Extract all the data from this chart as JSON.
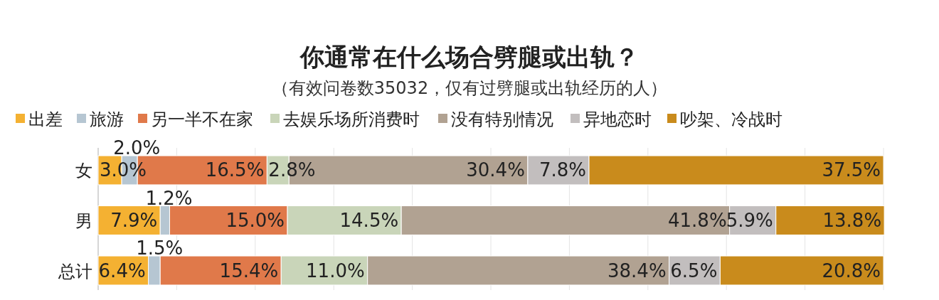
{
  "chart_data": {
    "type": "bar",
    "orientation": "horizontal",
    "stacked": true,
    "title": "你通常在什么场合劈腿或出轨？",
    "subtitle": "（有效问卷数35032，仅有过劈腿或出轨经历的人）",
    "categories": [
      "女",
      "男",
      "总计"
    ],
    "series": [
      {
        "name": "出差",
        "color": "#f4b132",
        "values": [
          3.0,
          7.9,
          6.4
        ],
        "value_labels": [
          "3.0%",
          "7.9%",
          "6.4%"
        ]
      },
      {
        "name": "旅游",
        "color": "#b6c6d2",
        "values": [
          2.0,
          1.2,
          1.5
        ],
        "value_labels": [
          "2.0%",
          "1.2%",
          "1.5%"
        ]
      },
      {
        "name": "另一半不在家",
        "color": "#e0794a",
        "values": [
          16.5,
          15.0,
          15.4
        ],
        "value_labels": [
          "16.5%",
          "15.0%",
          "15.4%"
        ]
      },
      {
        "name": "去娱乐场所消费时",
        "color": "#c9d5b9",
        "values": [
          2.8,
          14.5,
          11.0
        ],
        "value_labels": [
          "2.8%",
          "14.5%",
          "11.0%"
        ]
      },
      {
        "name": "没有特别情况",
        "color": "#b1a292",
        "values": [
          30.4,
          41.8,
          38.4
        ],
        "value_labels": [
          "30.4%",
          "41.8%",
          "38.4%"
        ]
      },
      {
        "name": "异地恋时",
        "color": "#c2bebe",
        "values": [
          7.8,
          5.9,
          6.5
        ],
        "value_labels": [
          "7.8%",
          "5.9%",
          "6.5%"
        ]
      },
      {
        "name": "吵架、冷战时",
        "color": "#c98b1c",
        "values": [
          37.5,
          13.8,
          20.8
        ],
        "value_labels": [
          "37.5%",
          "13.8%",
          "20.8%"
        ]
      }
    ],
    "xlim": [
      0,
      100
    ],
    "xticks": [
      {
        "value": 0,
        "label": null
      },
      {
        "value": 10,
        "label": null
      },
      {
        "value": 20,
        "label": null
      },
      {
        "value": 30,
        "label": null
      },
      {
        "value": 40,
        "label": null
      },
      {
        "value": 50,
        "label": null
      },
      {
        "value": 60,
        "label": null
      },
      {
        "value": 70,
        "label": null
      },
      {
        "value": 80,
        "label": null
      },
      {
        "value": 90,
        "label": null
      },
      {
        "value": 100,
        "label": null
      }
    ],
    "grid": "x",
    "legend": "top",
    "tick_labels": "y"
  }
}
